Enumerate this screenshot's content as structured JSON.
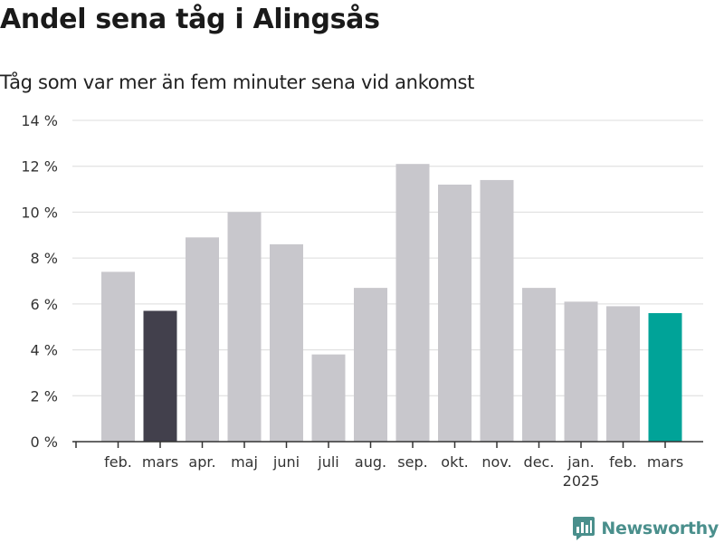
{
  "title": "Andel sena tåg i Alingsås",
  "subtitle": "Tåg som var mer än fem minuter sena vid ankomst",
  "brand": {
    "name": "Newsworthy",
    "color": "#4a8f8c"
  },
  "chart_data": {
    "type": "bar",
    "categories": [
      "feb.",
      "mars",
      "apr.",
      "maj",
      "juni",
      "juli",
      "aug.",
      "sep.",
      "okt.",
      "nov.",
      "dec.",
      "jan.",
      "feb.",
      "mars"
    ],
    "category_sublabels": [
      "",
      "",
      "",
      "",
      "",
      "",
      "",
      "",
      "",
      "",
      "",
      "2025",
      "",
      ""
    ],
    "values": [
      7.4,
      5.7,
      8.9,
      10.0,
      8.6,
      3.8,
      6.7,
      12.1,
      11.2,
      11.4,
      6.7,
      6.1,
      5.9,
      5.6
    ],
    "colors": [
      "#c8c7cc",
      "#42404c",
      "#c8c7cc",
      "#c8c7cc",
      "#c8c7cc",
      "#c8c7cc",
      "#c8c7cc",
      "#c8c7cc",
      "#c8c7cc",
      "#c8c7cc",
      "#c8c7cc",
      "#c8c7cc",
      "#c8c7cc",
      "#00a398"
    ],
    "ylim": [
      0,
      14
    ],
    "yticks": [
      0,
      2,
      4,
      6,
      8,
      10,
      12,
      14
    ],
    "ytick_labels": [
      "0 %",
      "2 %",
      "4 %",
      "6 %",
      "8 %",
      "10 %",
      "12 %",
      "14 %"
    ],
    "grid": true,
    "xlabel": "",
    "ylabel": ""
  }
}
